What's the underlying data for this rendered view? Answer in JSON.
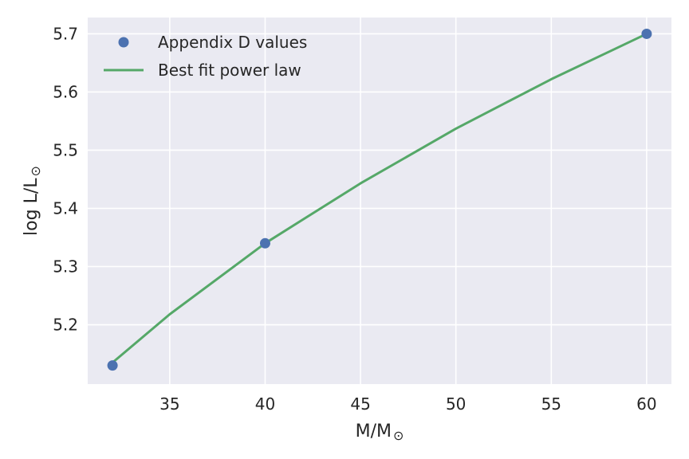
{
  "chart_data": {
    "type": "line",
    "xlabel": "M/M",
    "xlabel_sub": "⊙",
    "ylabel": "log L/L",
    "ylabel_sub": "⊙",
    "xlim": [
      30.7,
      61.3
    ],
    "ylim": [
      5.098,
      5.728
    ],
    "x_ticks": [
      35,
      40,
      45,
      50,
      55,
      60
    ],
    "y_ticks": [
      5.2,
      5.3,
      5.4,
      5.5,
      5.6,
      5.7
    ],
    "x_tick_labels": [
      "35",
      "40",
      "45",
      "50",
      "55",
      "60"
    ],
    "y_tick_labels": [
      "5.2",
      "5.3",
      "5.4",
      "5.5",
      "5.6",
      "5.7"
    ],
    "grid": true,
    "legend_position": "top-left",
    "series": [
      {
        "name": "Appendix D values",
        "kind": "scatter",
        "color": "#4c72b0",
        "x": [
          32,
          40,
          60
        ],
        "y": [
          5.13,
          5.34,
          5.7
        ]
      },
      {
        "name": "Best fit power law",
        "kind": "line",
        "color": "#55a868",
        "x": [
          32,
          35,
          40,
          45,
          50,
          55,
          60
        ],
        "y": [
          5.135,
          5.218,
          5.34,
          5.443,
          5.537,
          5.622,
          5.7
        ]
      }
    ]
  },
  "colors": {
    "plot_background": "#eaeaf2",
    "grid": "#ffffff",
    "text": "#262626"
  }
}
